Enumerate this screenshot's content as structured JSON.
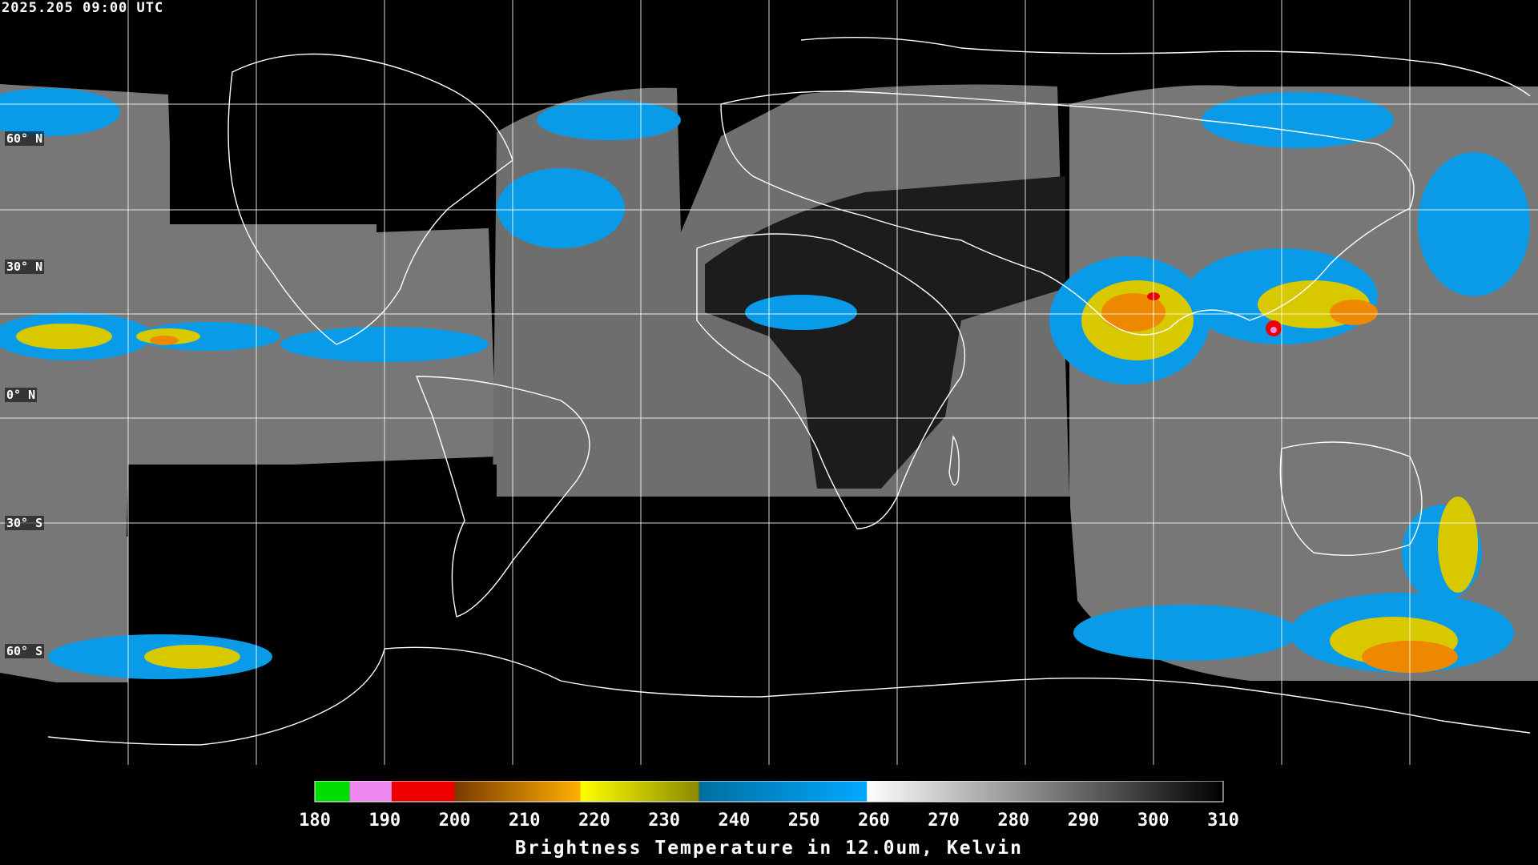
{
  "header": {
    "timestamp": "2025.205 09:00 UTC"
  },
  "map": {
    "latitude_labels": [
      "60° N",
      "30° N",
      "0° N",
      "30° S",
      "60° S"
    ],
    "background_color": "#000000",
    "coastline_color": "#ffffff",
    "grid_color": "#ffffff"
  },
  "colorbar": {
    "min": 180,
    "max": 310,
    "tick_labels": [
      "180",
      "190",
      "200",
      "210",
      "220",
      "230",
      "240",
      "250",
      "260",
      "270",
      "280",
      "290",
      "300",
      "310"
    ],
    "title": "Brightness Temperature in 12.0um, Kelvin",
    "segments": [
      {
        "from": 180,
        "to": 185,
        "color": "#00dd00"
      },
      {
        "from": 185,
        "to": 191,
        "color": "#ee88ee"
      },
      {
        "from": 191,
        "to": 200,
        "color": "#ee0000"
      },
      {
        "from": 200,
        "to": 218,
        "color": "gradient-brown-orange"
      },
      {
        "from": 218,
        "to": 235,
        "color": "gradient-yellow-olive"
      },
      {
        "from": 235,
        "to": 259,
        "color": "gradient-teal-blue"
      },
      {
        "from": 259,
        "to": 310,
        "color": "gradient-white-black"
      }
    ]
  }
}
